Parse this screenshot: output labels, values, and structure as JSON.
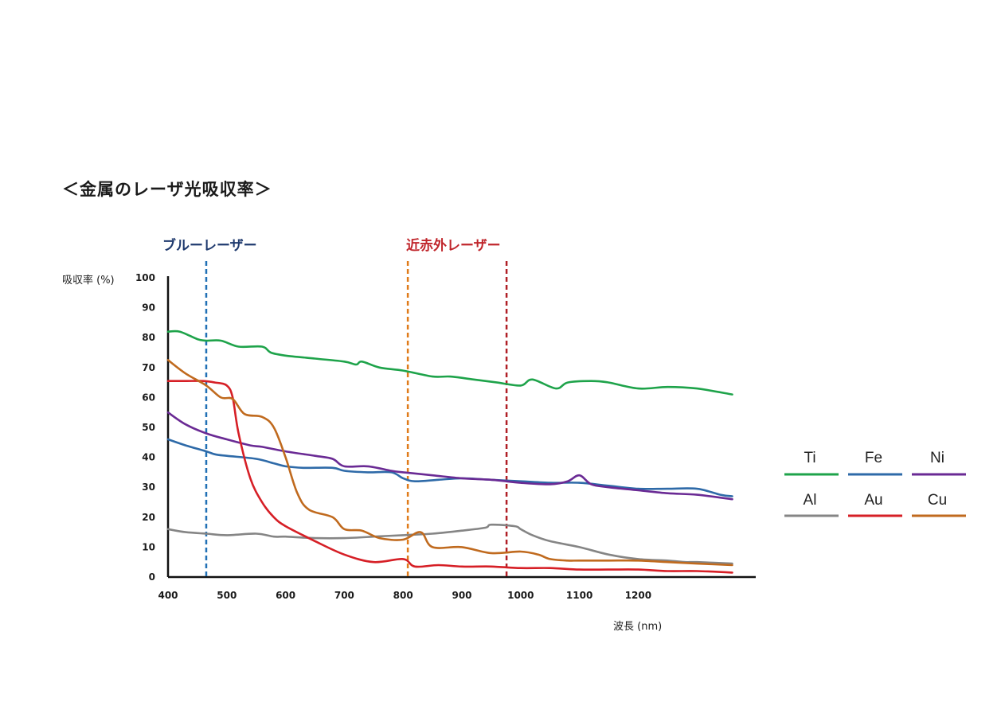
{
  "page": {
    "title": "＜金属のレーザ光吸収率＞"
  },
  "chart_data": {
    "type": "line",
    "title": "＜金属のレーザ光吸収率＞",
    "xlabel": "波長 (nm)",
    "ylabel": "吸収率 (%)",
    "xlim": [
      400,
      1400
    ],
    "ylim": [
      0,
      100
    ],
    "x_ticks": [
      400,
      500,
      600,
      700,
      800,
      900,
      1000,
      1100,
      1200
    ],
    "y_ticks": [
      0,
      10,
      20,
      30,
      40,
      50,
      60,
      70,
      80,
      90,
      100
    ],
    "reference_lines": [
      {
        "label": "ブルーレーザー",
        "x": 465,
        "color": "#2170b5"
      },
      {
        "label": "近赤外レーザー",
        "x": 808,
        "color": "#e07b1a"
      },
      {
        "label": "近赤外レーザー",
        "x": 976,
        "color": "#b01f26"
      }
    ],
    "laser_labels": {
      "blue": "ブルーレーザー",
      "near_infrared": "近赤外レーザー"
    },
    "series": [
      {
        "name": "Ti",
        "color": "#1ea34a",
        "x": [
          400,
          420,
          450,
          465,
          490,
          520,
          560,
          575,
          600,
          650,
          700,
          720,
          730,
          760,
          800,
          850,
          880,
          920,
          960,
          1000,
          1020,
          1060,
          1080,
          1120,
          1150,
          1200,
          1250,
          1300,
          1360
        ],
        "y": [
          82,
          82,
          79.5,
          79,
          79,
          77,
          77,
          75,
          74,
          73,
          72,
          71,
          72,
          70,
          69,
          67,
          67,
          66,
          65,
          64,
          66,
          63,
          65,
          65.5,
          65,
          63,
          63.5,
          63,
          61
        ]
      },
      {
        "name": "Fe",
        "color": "#2e6aa8",
        "x": [
          400,
          430,
          465,
          480,
          500,
          550,
          580,
          600,
          630,
          680,
          700,
          740,
          780,
          800,
          820,
          860,
          900,
          950,
          1000,
          1050,
          1100,
          1150,
          1200,
          1250,
          1300,
          1340,
          1360
        ],
        "y": [
          46,
          44,
          42,
          41,
          40.5,
          39.5,
          38,
          37,
          36.5,
          36.5,
          35.5,
          35,
          35,
          33,
          32,
          32.5,
          33,
          32.5,
          32,
          31.5,
          31.5,
          30.5,
          29.5,
          29.5,
          29.5,
          27.5,
          27
        ]
      },
      {
        "name": "Ni",
        "color": "#6a2a94",
        "x": [
          400,
          430,
          465,
          500,
          540,
          560,
          600,
          650,
          680,
          700,
          740,
          780,
          800,
          850,
          900,
          950,
          1000,
          1050,
          1080,
          1100,
          1120,
          1150,
          1200,
          1250,
          1300,
          1360
        ],
        "y": [
          55,
          51,
          48,
          46,
          44,
          43.5,
          42,
          40.5,
          39.5,
          37,
          37,
          35.5,
          35,
          34,
          33,
          32.5,
          31.5,
          31,
          32,
          34,
          31,
          30,
          29,
          28,
          27.5,
          26
        ]
      },
      {
        "name": "Al",
        "color": "#858585",
        "x": [
          400,
          430,
          465,
          500,
          550,
          580,
          600,
          650,
          700,
          750,
          800,
          850,
          900,
          940,
          950,
          990,
          1000,
          1020,
          1050,
          1100,
          1150,
          1200,
          1250,
          1280,
          1300,
          1360
        ],
        "y": [
          16,
          15,
          14.5,
          14,
          14.5,
          13.5,
          13.5,
          13,
          13,
          13.5,
          14,
          14.5,
          15.5,
          16.5,
          17.5,
          17,
          16,
          14,
          12,
          10,
          7.5,
          6,
          5.5,
          5,
          5,
          4.5
        ]
      },
      {
        "name": "Au",
        "color": "#d61f26",
        "x": [
          400,
          430,
          460,
          480,
          500,
          510,
          520,
          540,
          560,
          580,
          600,
          650,
          700,
          750,
          800,
          820,
          860,
          900,
          950,
          1000,
          1050,
          1100,
          1150,
          1200,
          1250,
          1300,
          1360
        ],
        "y": [
          65.5,
          65.5,
          65.5,
          65,
          64,
          60,
          48,
          33,
          25,
          20,
          17,
          12,
          7.5,
          5,
          6,
          3.5,
          4,
          3.5,
          3.5,
          3,
          3,
          2.5,
          2.5,
          2.5,
          2,
          2,
          1.5
        ]
      },
      {
        "name": "Cu",
        "color": "#c06a1e",
        "x": [
          400,
          430,
          465,
          490,
          510,
          530,
          560,
          580,
          600,
          620,
          640,
          680,
          700,
          730,
          760,
          800,
          830,
          850,
          900,
          950,
          1000,
          1030,
          1050,
          1080,
          1100,
          1150,
          1200,
          1250,
          1300,
          1360
        ],
        "y": [
          72.5,
          68,
          64,
          60,
          59.5,
          54.5,
          53.5,
          50,
          40,
          28,
          22.5,
          20,
          16,
          15.5,
          13,
          12.5,
          15,
          10,
          10,
          8,
          8.5,
          7.5,
          6,
          5.5,
          5.5,
          5.5,
          5.5,
          5,
          4.5,
          4
        ]
      }
    ],
    "legend": [
      {
        "label": "Ti",
        "color": "#1ea34a"
      },
      {
        "label": "Fe",
        "color": "#2e6aa8"
      },
      {
        "label": "Ni",
        "color": "#6a2a94"
      },
      {
        "label": "Al",
        "color": "#858585"
      },
      {
        "label": "Au",
        "color": "#d61f26"
      },
      {
        "label": "Cu",
        "color": "#c06a1e"
      }
    ],
    "legend_position": "right"
  }
}
